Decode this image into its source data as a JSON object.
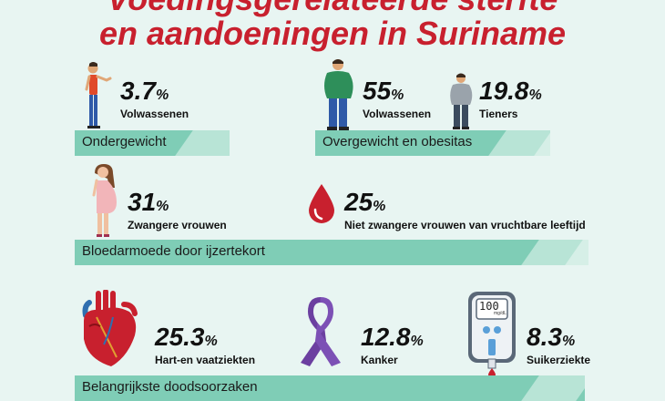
{
  "title": {
    "line1": "Voedingsgerelateerde sterfte",
    "line2": "en aandoeningen in Suriname"
  },
  "sections": {
    "underweight": {
      "band_label": "Ondergewicht",
      "stats": [
        {
          "value": "3.7",
          "unit": "%",
          "label": "Volwassenen"
        }
      ]
    },
    "overweight": {
      "band_label": "Overgewicht en obesitas",
      "stats": [
        {
          "value": "55",
          "unit": "%",
          "label": "Volwassenen"
        },
        {
          "value": "19.8",
          "unit": "%",
          "label": "Tieners"
        }
      ]
    },
    "anemia": {
      "band_label": "Bloedarmoede door ijzertekort",
      "stats": [
        {
          "value": "31",
          "unit": "%",
          "label": "Zwangere vrouwen"
        },
        {
          "value": "25",
          "unit": "%",
          "label": "Niet zwangere vrouwen van vruchtbare leeftijd"
        }
      ]
    },
    "death_causes": {
      "band_label": "Belangrijkste doodsoorzaken",
      "stats": [
        {
          "value": "25.3",
          "unit": "%",
          "label": "Hart-en vaatziekten"
        },
        {
          "value": "12.8",
          "unit": "%",
          "label": "Kanker"
        },
        {
          "value": "8.3",
          "unit": "%",
          "label": "Suikerziekte"
        }
      ]
    }
  },
  "glucometer_display": {
    "reading": "100",
    "unit": "mg/dL"
  },
  "icons": [
    "thin-person-icon",
    "overweight-man-icon",
    "overweight-teen-icon",
    "pregnant-woman-icon",
    "blood-drop-icon",
    "heart-icon",
    "cancer-ribbon-icon",
    "glucometer-icon"
  ],
  "colors": {
    "title": "#c8202e",
    "band": "#7fcdb6",
    "background": "#e8f5f2",
    "ribbon": "#6b3fa0",
    "blood": "#c8202e"
  }
}
